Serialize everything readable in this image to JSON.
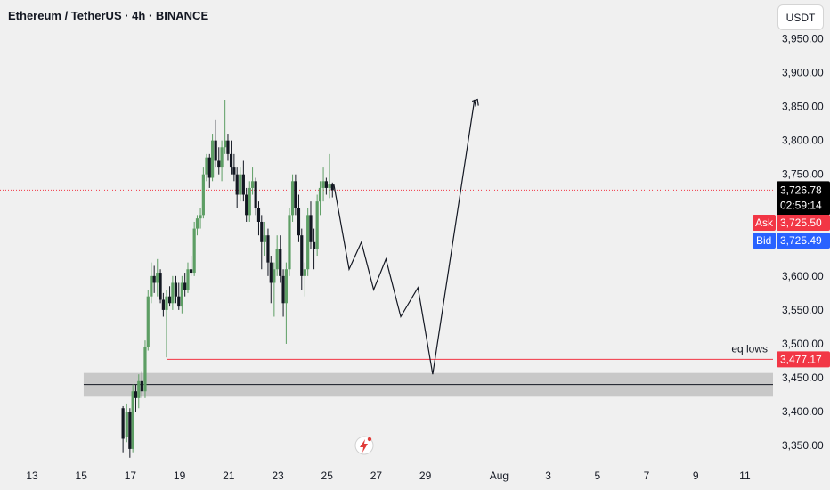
{
  "header": {
    "title": "Ethereum / TetherUS · 4h · BINANCE"
  },
  "currency_button": {
    "label": "USDT"
  },
  "price_tags": {
    "last": "3,726.78",
    "countdown": "02:59:14",
    "ask_label": "Ask",
    "ask": "3,725.50",
    "bid_label": "Bid",
    "bid": "3,725.49",
    "level": "3,477.17"
  },
  "annotations": {
    "eq_lows": "eq lows"
  },
  "colors": {
    "up": "#5d9e64",
    "down": "#131722",
    "last_tag": "#000000",
    "ask": "#f23645",
    "bid": "#2962ff",
    "level_line": "#f23645",
    "zone_fill": "#c8c8c8",
    "projection": "#131722",
    "logo": "#e03b38"
  },
  "icons": {
    "logo": "lightning-icon"
  },
  "chart_data": {
    "type": "candlestick",
    "title": "Ethereum / TetherUS · 4h · BINANCE",
    "ylim": [
      3325,
      3990
    ],
    "y_ticks": [
      {
        "value": 3950,
        "label": "3,950.00"
      },
      {
        "value": 3900,
        "label": "3,900.00"
      },
      {
        "value": 3850,
        "label": "3,850.00"
      },
      {
        "value": 3800,
        "label": "3,800.00"
      },
      {
        "value": 3750,
        "label": "3,750.00"
      },
      {
        "value": 3600,
        "label": "3,600.00"
      },
      {
        "value": 3550,
        "label": "3,550.00"
      },
      {
        "value": 3500,
        "label": "3,500.00"
      },
      {
        "value": 3450,
        "label": "3,450.00"
      },
      {
        "value": 3400,
        "label": "3,400.00"
      },
      {
        "value": 3350,
        "label": "3,350.00"
      }
    ],
    "x_ticks": [
      {
        "day": 13,
        "label": "13"
      },
      {
        "day": 15,
        "label": "15"
      },
      {
        "day": 17,
        "label": "17"
      },
      {
        "day": 19,
        "label": "19"
      },
      {
        "day": 21,
        "label": "21"
      },
      {
        "day": 23,
        "label": "23"
      },
      {
        "day": 25,
        "label": "25"
      },
      {
        "day": 27,
        "label": "27"
      },
      {
        "day": 29,
        "label": "29"
      },
      {
        "day": 32,
        "label": "Aug"
      },
      {
        "day": 34,
        "label": "3"
      },
      {
        "day": 36,
        "label": "5"
      },
      {
        "day": 38,
        "label": "7"
      },
      {
        "day": 40,
        "label": "9"
      },
      {
        "day": 42,
        "label": "11"
      }
    ],
    "candles": [
      [
        16.7,
        3405,
        3408,
        3340,
        3360
      ],
      [
        16.85,
        3362,
        3412,
        3355,
        3400
      ],
      [
        16.98,
        3400,
        3405,
        3332,
        3345
      ],
      [
        17.1,
        3345,
        3440,
        3340,
        3430
      ],
      [
        17.22,
        3430,
        3440,
        3400,
        3420
      ],
      [
        17.34,
        3420,
        3455,
        3405,
        3445
      ],
      [
        17.47,
        3445,
        3460,
        3420,
        3430
      ],
      [
        17.6,
        3430,
        3505,
        3420,
        3495
      ],
      [
        17.72,
        3495,
        3580,
        3490,
        3570
      ],
      [
        17.85,
        3570,
        3620,
        3560,
        3600
      ],
      [
        17.97,
        3600,
        3615,
        3575,
        3590
      ],
      [
        18.1,
        3590,
        3625,
        3570,
        3605
      ],
      [
        18.22,
        3605,
        3610,
        3560,
        3565
      ],
      [
        18.34,
        3565,
        3575,
        3540,
        3550
      ],
      [
        18.47,
        3550,
        3580,
        3480,
        3570
      ],
      [
        18.6,
        3570,
        3585,
        3555,
        3560
      ],
      [
        18.72,
        3560,
        3600,
        3550,
        3590
      ],
      [
        18.85,
        3590,
        3600,
        3560,
        3570
      ],
      [
        18.97,
        3570,
        3590,
        3550,
        3555
      ],
      [
        19.1,
        3555,
        3600,
        3545,
        3590
      ],
      [
        19.22,
        3590,
        3605,
        3570,
        3580
      ],
      [
        19.34,
        3580,
        3620,
        3575,
        3610
      ],
      [
        19.47,
        3610,
        3630,
        3600,
        3605
      ],
      [
        19.6,
        3605,
        3680,
        3600,
        3670
      ],
      [
        19.72,
        3670,
        3690,
        3660,
        3685
      ],
      [
        19.85,
        3685,
        3700,
        3670,
        3690
      ],
      [
        19.97,
        3690,
        3760,
        3685,
        3750
      ],
      [
        20.1,
        3750,
        3780,
        3740,
        3775
      ],
      [
        20.22,
        3775,
        3780,
        3730,
        3745
      ],
      [
        20.34,
        3745,
        3810,
        3740,
        3800
      ],
      [
        20.47,
        3800,
        3830,
        3760,
        3770
      ],
      [
        20.6,
        3770,
        3790,
        3750,
        3760
      ],
      [
        20.72,
        3760,
        3800,
        3740,
        3790
      ],
      [
        20.85,
        3790,
        3860,
        3780,
        3800
      ],
      [
        20.97,
        3800,
        3810,
        3770,
        3780
      ],
      [
        21.1,
        3780,
        3800,
        3750,
        3760
      ],
      [
        21.22,
        3760,
        3780,
        3740,
        3750
      ],
      [
        21.34,
        3750,
        3760,
        3700,
        3720
      ],
      [
        21.47,
        3720,
        3760,
        3710,
        3750
      ],
      [
        21.6,
        3750,
        3770,
        3710,
        3720
      ],
      [
        21.72,
        3720,
        3730,
        3680,
        3690
      ],
      [
        21.85,
        3690,
        3740,
        3680,
        3730
      ],
      [
        21.97,
        3730,
        3760,
        3720,
        3740
      ],
      [
        22.1,
        3740,
        3745,
        3690,
        3700
      ],
      [
        22.22,
        3700,
        3710,
        3660,
        3680
      ],
      [
        22.34,
        3680,
        3690,
        3610,
        3650
      ],
      [
        22.47,
        3650,
        3680,
        3630,
        3660
      ],
      [
        22.6,
        3660,
        3670,
        3600,
        3620
      ],
      [
        22.72,
        3620,
        3630,
        3560,
        3590
      ],
      [
        22.85,
        3590,
        3620,
        3540,
        3610
      ],
      [
        22.97,
        3610,
        3660,
        3600,
        3640
      ],
      [
        23.1,
        3640,
        3660,
        3590,
        3600
      ],
      [
        23.22,
        3600,
        3610,
        3540,
        3560
      ],
      [
        23.34,
        3560,
        3620,
        3500,
        3610
      ],
      [
        23.47,
        3610,
        3700,
        3600,
        3690
      ],
      [
        23.6,
        3690,
        3750,
        3680,
        3740
      ],
      [
        23.72,
        3740,
        3750,
        3690,
        3700
      ],
      [
        23.85,
        3700,
        3720,
        3650,
        3660
      ],
      [
        23.97,
        3660,
        3670,
        3580,
        3600
      ],
      [
        24.1,
        3600,
        3620,
        3570,
        3610
      ],
      [
        24.22,
        3610,
        3700,
        3600,
        3690
      ],
      [
        24.34,
        3690,
        3710,
        3640,
        3650
      ],
      [
        24.47,
        3650,
        3670,
        3610,
        3640
      ],
      [
        24.6,
        3640,
        3720,
        3630,
        3710
      ],
      [
        24.72,
        3710,
        3740,
        3690,
        3730
      ],
      [
        24.85,
        3730,
        3760,
        3710,
        3740
      ],
      [
        24.97,
        3740,
        3745,
        3720,
        3730
      ],
      [
        25.1,
        3730,
        3780,
        3715,
        3735
      ],
      [
        25.22,
        3735,
        3738,
        3716,
        3726.78
      ]
    ],
    "projection_path": [
      [
        25.28,
        3735
      ],
      [
        25.9,
        3610
      ],
      [
        26.4,
        3650
      ],
      [
        26.9,
        3580
      ],
      [
        27.4,
        3625
      ],
      [
        28.0,
        3540
      ],
      [
        28.7,
        3583
      ],
      [
        29.3,
        3455
      ],
      [
        31.0,
        3860
      ],
      [
        31.05,
        3850
      ]
    ],
    "levels": {
      "last_price": 3726.78,
      "ask": 3725.5,
      "bid": 3725.49,
      "eq_lows": 3477.17,
      "zone": [
        3422,
        3457
      ],
      "zone_mid": 3440
    }
  }
}
